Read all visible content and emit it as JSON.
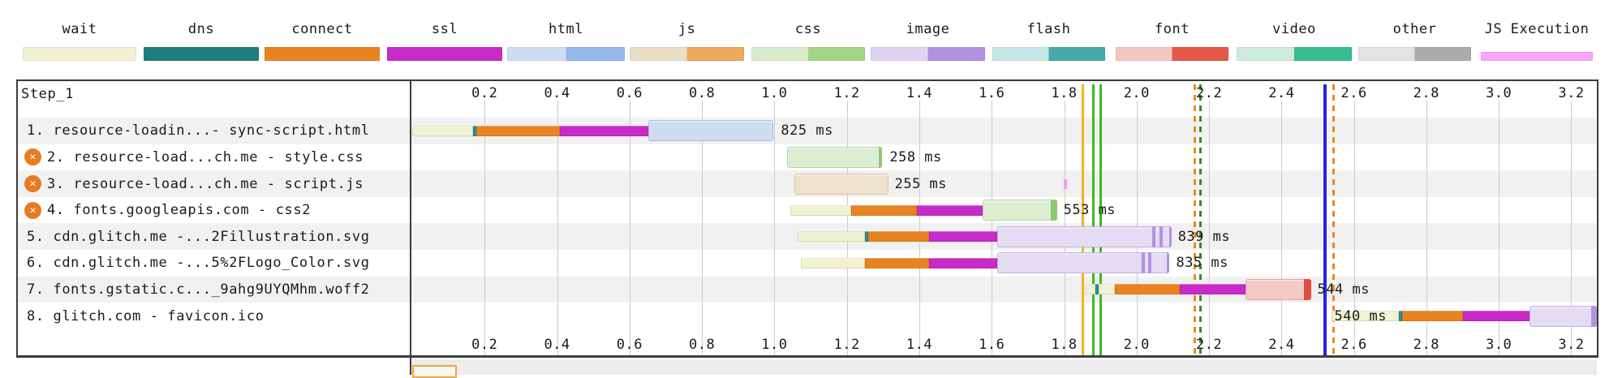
{
  "chart_data": {
    "type": "waterfall",
    "title": "Step_1",
    "x_unit": "seconds",
    "x_ticks": [
      "0.2",
      "0.4",
      "0.6",
      "0.8",
      "1.0",
      "1.2",
      "1.4",
      "1.6",
      "1.8",
      "2.0",
      "2.2",
      "2.4",
      "2.6",
      "2.8",
      "3.0",
      "3.2"
    ],
    "x_max": 3.27,
    "legend": [
      {
        "label": "wait",
        "colors": [
          "#f1f1d4"
        ]
      },
      {
        "label": "dns",
        "colors": [
          "#217d7d"
        ]
      },
      {
        "label": "connect",
        "colors": [
          "#e98320"
        ]
      },
      {
        "label": "ssl",
        "colors": [
          "#c92ac9"
        ]
      },
      {
        "label": "html",
        "colors": [
          "#cfddf1",
          "#96b8ea"
        ]
      },
      {
        "label": "js",
        "colors": [
          "#eadfc6",
          "#eda95c"
        ]
      },
      {
        "label": "css",
        "colors": [
          "#d9ecca",
          "#a3d585"
        ]
      },
      {
        "label": "image",
        "colors": [
          "#e0d5f0",
          "#b291e0"
        ]
      },
      {
        "label": "flash",
        "colors": [
          "#c6e7e5",
          "#48a9a9"
        ]
      },
      {
        "label": "font",
        "colors": [
          "#f4c8c2",
          "#e4584a"
        ]
      },
      {
        "label": "video",
        "colors": [
          "#cdebdd",
          "#38bd8e"
        ]
      },
      {
        "label": "other",
        "colors": [
          "#e3e3e3",
          "#ababab"
        ]
      },
      {
        "label": "JS Execution",
        "colors": [
          "#fda4fb"
        ]
      }
    ],
    "phase_colors": {
      "wait": "#f1f1d4",
      "dns": "#2f9090",
      "connect": "#e98320",
      "ssl": "#c92ac9"
    },
    "content_styles": {
      "html": {
        "bg": "#cfddf1",
        "border": "#a6bedd"
      },
      "css": {
        "bg": "#dcedd1",
        "border": "#b5d9a2",
        "cap": "#8cc96f"
      },
      "js": {
        "bg": "#eee1cd",
        "border": "#d9c6a8"
      },
      "image": {
        "bg": "#e4dcf3",
        "border": "#c2b1e2",
        "cap": "#b193de"
      },
      "font": {
        "bg": "#f3cac5",
        "border": "#e2a69e",
        "cap": "#dd4f3e"
      }
    },
    "requests": [
      {
        "label": "1. resource-loadin...- sync-script.html",
        "error": false,
        "duration": "825 ms",
        "label_at": 1.018,
        "label_over_bar": false,
        "phases": [
          [
            "wait",
            0.0,
            0.167
          ],
          [
            "dns",
            0.167,
            0.176
          ],
          [
            "connect",
            0.176,
            0.407
          ],
          [
            "ssl",
            0.407,
            0.653
          ]
        ],
        "content": {
          "type": "html",
          "start": 0.653,
          "end": 0.998
        }
      },
      {
        "label": "2. resource-load...ch.me - style.css",
        "error": true,
        "duration": "258 ms",
        "label_at": 1.318,
        "label_over_bar": false,
        "phases": [],
        "content": {
          "type": "css",
          "start": 1.034,
          "end": 1.298,
          "cap_from": 1.289
        }
      },
      {
        "label": "3. resource-load...ch.me - script.js",
        "error": true,
        "duration": "255 ms",
        "label_at": 1.332,
        "label_over_bar": false,
        "phases": [],
        "content": {
          "type": "js",
          "start": 1.054,
          "end": 1.314
        }
      },
      {
        "label": "4. fonts.googleapis.com - css2",
        "error": true,
        "duration": "553 ms",
        "label_at": 1.798,
        "label_over_bar": false,
        "phases": [
          [
            "wait",
            1.043,
            1.213
          ],
          [
            "connect",
            1.213,
            1.394
          ],
          [
            "ssl",
            1.394,
            1.574
          ]
        ],
        "content": {
          "type": "css",
          "start": 1.574,
          "end": 1.78,
          "cap_from": 1.764
        }
      },
      {
        "label": "5. cdn.glitch.me -...2Fillustration.svg",
        "error": false,
        "duration": "839 ms",
        "label_at": 2.114,
        "label_over_bar": false,
        "phases": [
          [
            "wait",
            1.063,
            1.249
          ],
          [
            "dns",
            1.249,
            1.258
          ],
          [
            "connect",
            1.258,
            1.426
          ],
          [
            "ssl",
            1.426,
            1.616
          ]
        ],
        "content": {
          "type": "image",
          "start": 1.616,
          "end": 2.096,
          "cap_from": 2.089,
          "stripes": [
            2.042,
            2.063
          ]
        }
      },
      {
        "label": "6. cdn.glitch.me -...5%2FLogo_Color.svg",
        "error": false,
        "duration": "835 ms",
        "label_at": 2.109,
        "label_over_bar": false,
        "phases": [
          [
            "wait",
            1.072,
            1.249
          ],
          [
            "connect",
            1.249,
            1.426
          ],
          [
            "ssl",
            1.426,
            1.616
          ]
        ],
        "content": {
          "type": "image",
          "start": 1.616,
          "end": 2.091,
          "cap_from": 2.084,
          "stripes": [
            2.015,
            2.031
          ]
        }
      },
      {
        "label": "7. fonts.gstatic.c..._9ahg9UYQMhm.woff2",
        "error": false,
        "duration": "544 ms",
        "label_at": 2.499,
        "label_over_bar": false,
        "phases": [
          [
            "wait",
            1.856,
            1.887
          ],
          [
            "dns",
            1.887,
            1.896
          ],
          [
            "wait",
            1.896,
            1.939
          ],
          [
            "connect",
            1.939,
            2.12
          ],
          [
            "ssl",
            2.12,
            2.3
          ]
        ],
        "content": {
          "type": "font",
          "start": 2.3,
          "end": 2.481,
          "cap_from": 2.461
        }
      },
      {
        "label": "8. glitch.com - favicon.ico",
        "error": false,
        "duration": "540 ms",
        "label_at": 2.546,
        "label_over_bar": true,
        "phases": [
          [
            "wait",
            2.537,
            2.725
          ],
          [
            "dns",
            2.725,
            2.734
          ],
          [
            "connect",
            2.734,
            2.9
          ],
          [
            "ssl",
            2.9,
            3.084
          ]
        ],
        "content": {
          "type": "image",
          "start": 3.084,
          "end": 3.27,
          "cap_from": 3.256
        }
      }
    ],
    "events": [
      {
        "t": 1.852,
        "color": "#f2b41d",
        "style": "solid",
        "width": 3
      },
      {
        "t": 1.881,
        "color": "#3cba1e",
        "style": "solid",
        "width": 3
      },
      {
        "t": 1.9,
        "color": "#3cba1e",
        "style": "solid",
        "width": 3
      },
      {
        "t": 2.16,
        "color": "#f28718",
        "style": "dashed",
        "width": 3
      },
      {
        "t": 2.177,
        "color": "#2e8f24",
        "style": "dashed",
        "width": 3
      },
      {
        "t": 2.521,
        "color": "#2424e2",
        "style": "solid",
        "width": 4
      },
      {
        "t": 2.543,
        "color": "#f28718",
        "style": "dashed",
        "width": 3
      }
    ],
    "js_execution": [
      {
        "request": 3,
        "start": 1.798,
        "end": 1.807,
        "color": "#f49df2"
      }
    ],
    "next_section": {
      "marker_start": 0.0,
      "marker_end": 0.115,
      "marker_color": "#f2a33c",
      "bg": "#ececec"
    }
  }
}
